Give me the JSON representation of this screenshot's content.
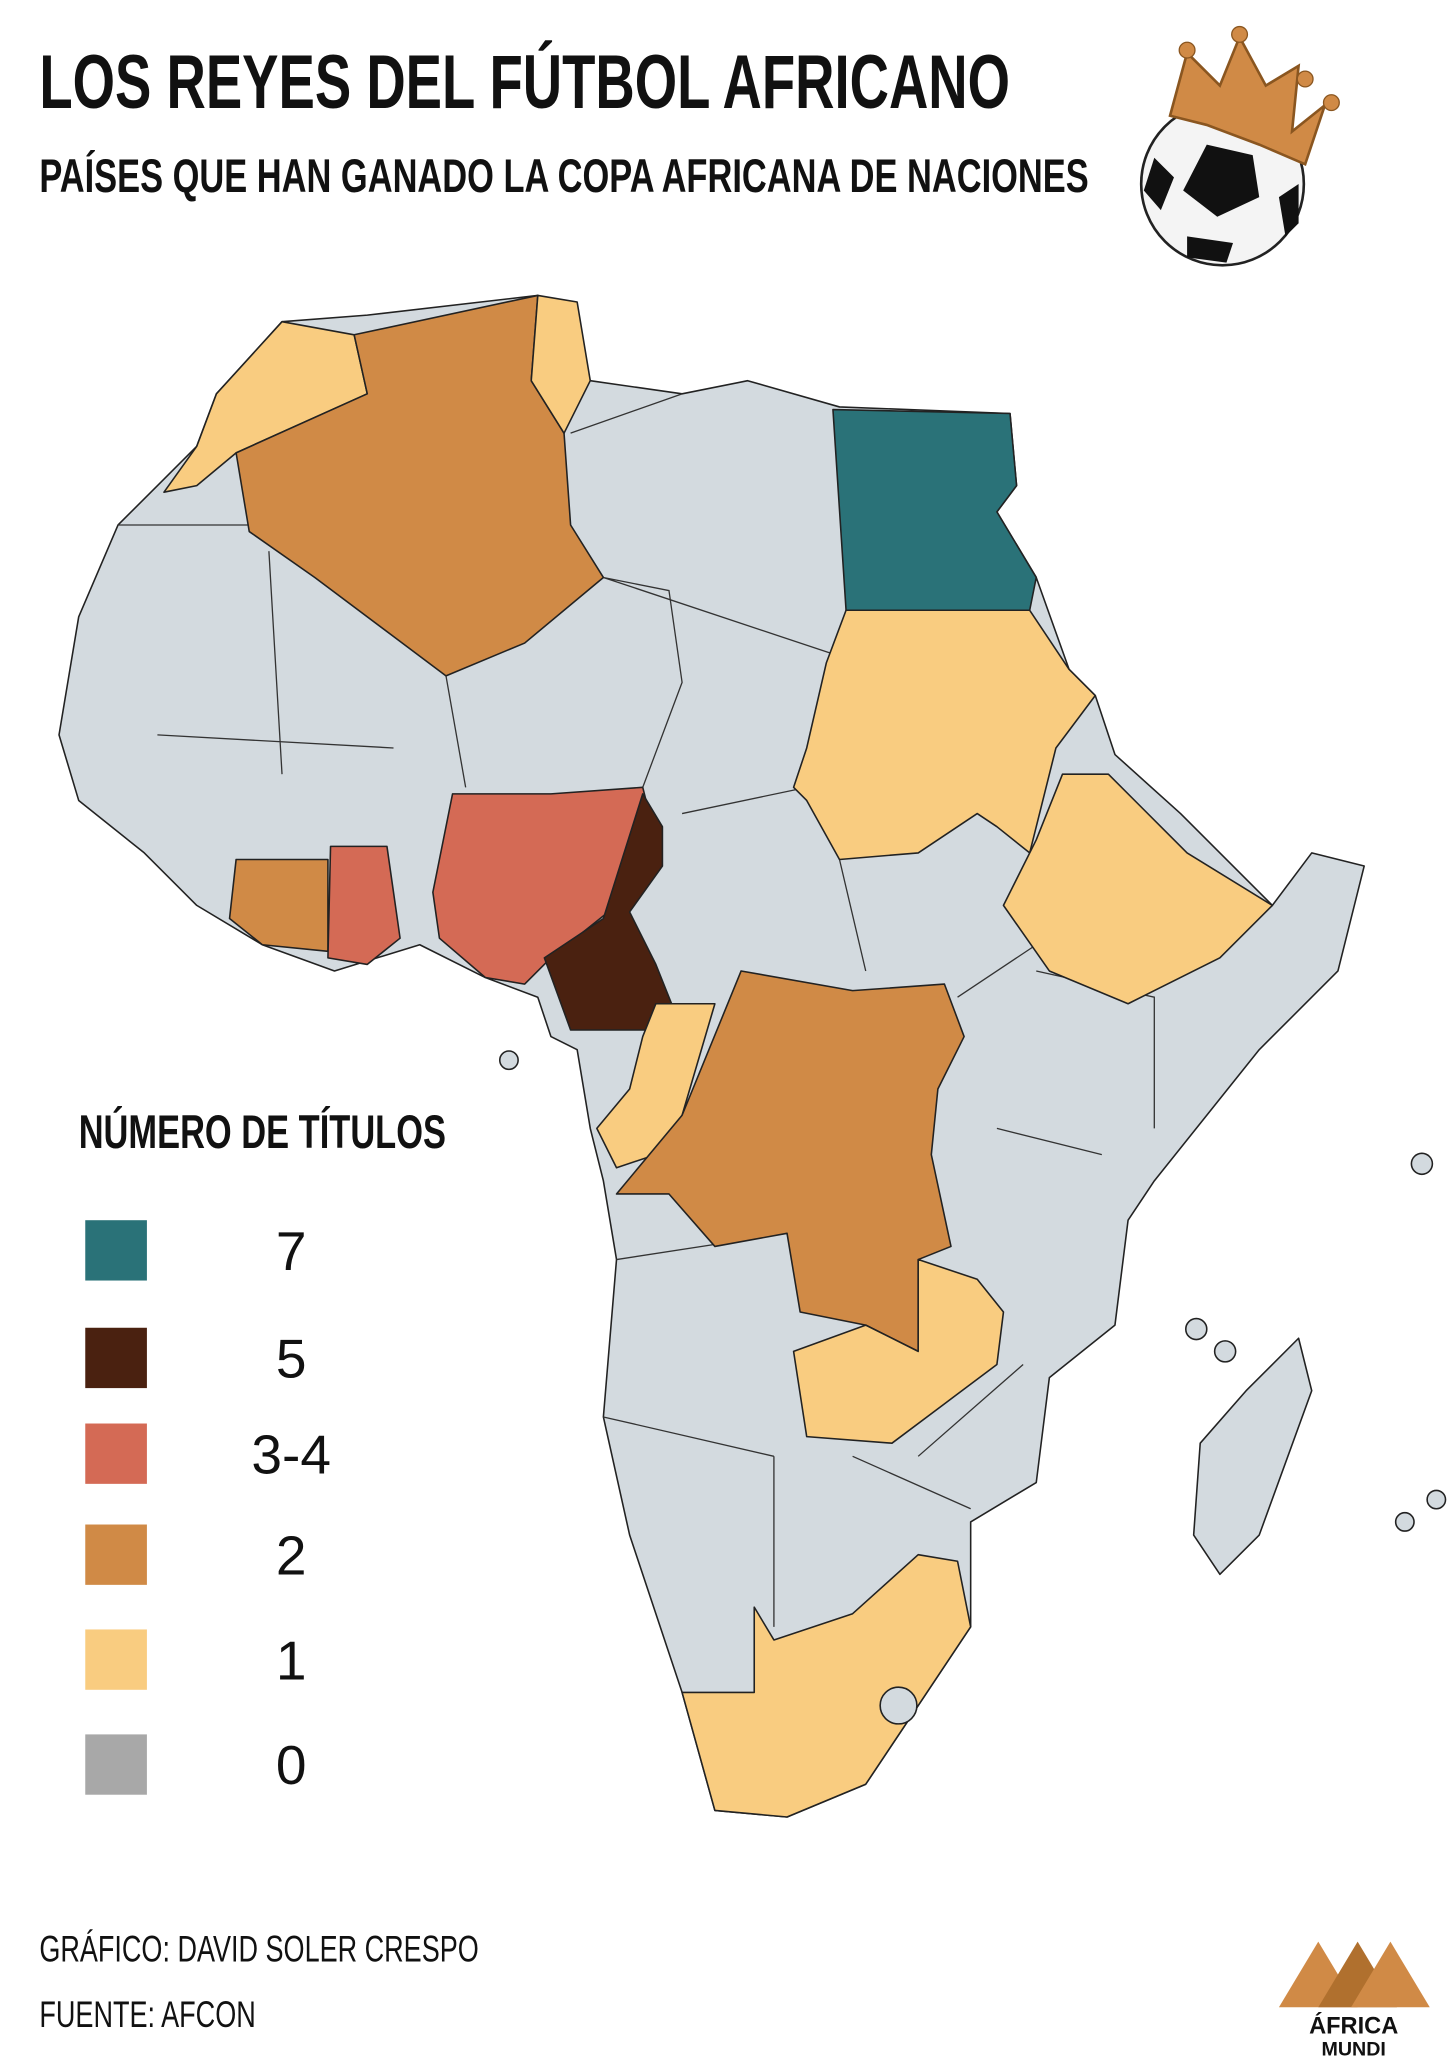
{
  "header": {
    "title": "LOS REYES DEL FÚTBOL AFRICANO",
    "subtitle": "PAÍSES QUE HAN GANADO LA COPA AFRICANA DE NACIONES"
  },
  "legend": {
    "title": "NÚMERO DE TÍTULOS",
    "items": [
      {
        "label": "7",
        "color": "#2a7278"
      },
      {
        "label": "5",
        "color": "#4a2110"
      },
      {
        "label": "3-4",
        "color": "#d46a55"
      },
      {
        "label": "2",
        "color": "#d08a46"
      },
      {
        "label": "1",
        "color": "#f9cc80"
      },
      {
        "label": "0",
        "color": "#a8a8a8"
      }
    ]
  },
  "credits": {
    "graphic": "GRÁFICO: DAVID SOLER CRESPO",
    "source": "FUENTE: AFCON"
  },
  "logo": {
    "top": "ÁFRICA",
    "bottom": "MUNDI"
  }
}
